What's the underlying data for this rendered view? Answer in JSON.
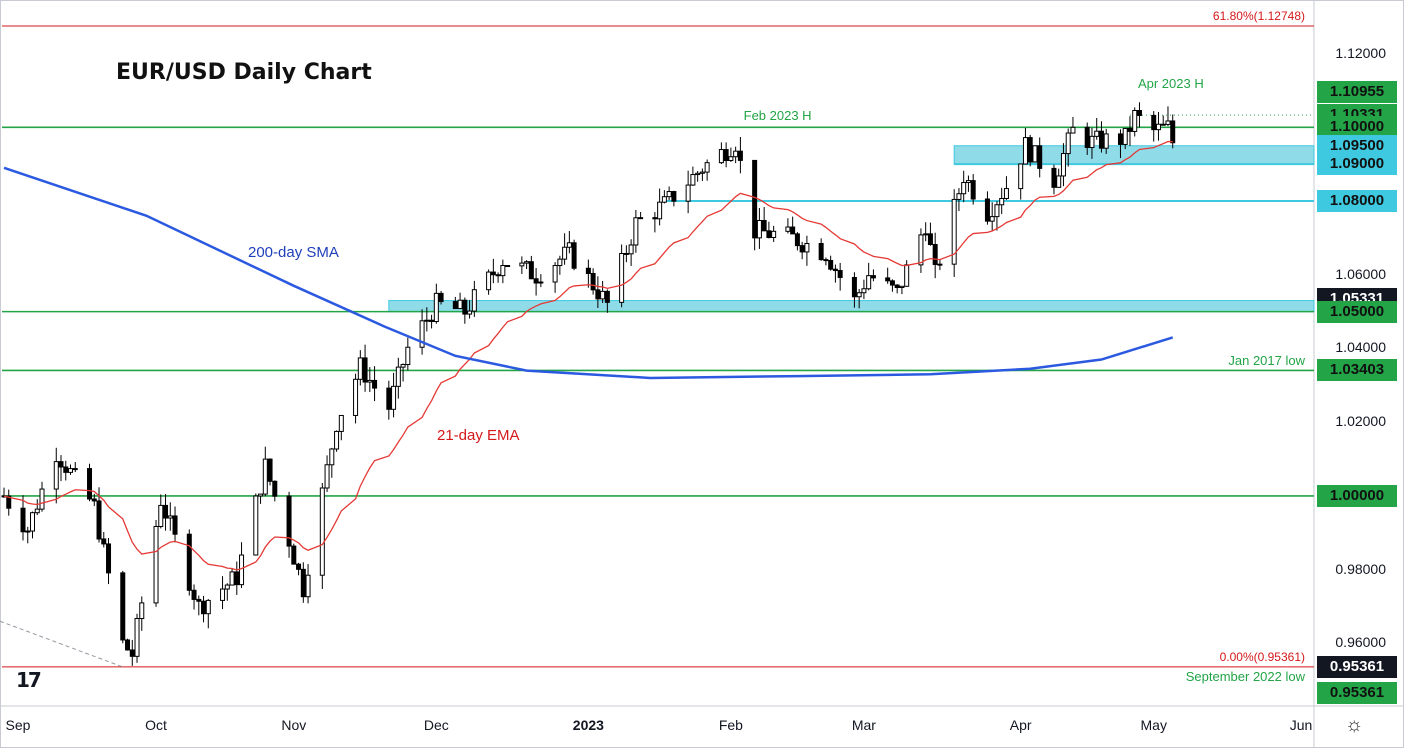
{
  "chart_data": {
    "type": "candlestick",
    "title": "EUR/USD Daily Chart",
    "ylim": [
      0.943,
      1.134
    ],
    "y_ticks": [
      "1.12000",
      "1.10000",
      "1.08000",
      "1.06000",
      "1.04000",
      "1.02000",
      "1.00000",
      "0.98000",
      "0.96000"
    ],
    "x_ticks": [
      {
        "label": "Sep",
        "date": "2022-09-01"
      },
      {
        "label": "Oct",
        "date": "2022-10-03"
      },
      {
        "label": "Nov",
        "date": "2022-11-01"
      },
      {
        "label": "Dec",
        "date": "2022-12-01"
      },
      {
        "label": "2023",
        "date": "2023-01-02",
        "bold": true
      },
      {
        "label": "Feb",
        "date": "2023-02-01"
      },
      {
        "label": "Mar",
        "date": "2023-03-01"
      },
      {
        "label": "Apr",
        "date": "2023-04-03"
      },
      {
        "label": "May",
        "date": "2023-05-01"
      },
      {
        "label": "Jun",
        "date": "2023-06-01"
      }
    ],
    "swing_points": [
      {
        "date": "2022-09-01",
        "close": 1.0
      },
      {
        "date": "2022-09-06",
        "close": 0.991
      },
      {
        "date": "2022-09-12",
        "close": 1.012
      },
      {
        "date": "2022-09-20",
        "close": 0.997
      },
      {
        "date": "2022-09-26",
        "close": 0.96
      },
      {
        "date": "2022-09-28",
        "close": 0.957
      },
      {
        "date": "2022-10-04",
        "close": 0.999
      },
      {
        "date": "2022-10-12",
        "close": 0.97
      },
      {
        "date": "2022-10-20",
        "close": 0.978
      },
      {
        "date": "2022-10-26",
        "close": 1.008
      },
      {
        "date": "2022-10-31",
        "close": 0.988
      },
      {
        "date": "2022-11-03",
        "close": 0.975
      },
      {
        "date": "2022-11-10",
        "close": 1.02
      },
      {
        "date": "2022-11-15",
        "close": 1.035
      },
      {
        "date": "2022-11-21",
        "close": 1.024
      },
      {
        "date": "2022-11-25",
        "close": 1.04
      },
      {
        "date": "2022-12-01",
        "close": 1.052
      },
      {
        "date": "2022-12-07",
        "close": 1.05
      },
      {
        "date": "2022-12-15",
        "close": 1.064
      },
      {
        "date": "2022-12-22",
        "close": 1.06
      },
      {
        "date": "2022-12-29",
        "close": 1.066
      },
      {
        "date": "2023-01-06",
        "close": 1.052
      },
      {
        "date": "2023-01-12",
        "close": 1.074
      },
      {
        "date": "2023-01-18",
        "close": 1.079
      },
      {
        "date": "2023-01-26",
        "close": 1.089
      },
      {
        "date": "2023-02-02",
        "close": 1.096
      },
      {
        "date": "2023-02-06",
        "close": 1.072
      },
      {
        "date": "2023-02-14",
        "close": 1.07
      },
      {
        "date": "2023-02-21",
        "close": 1.066
      },
      {
        "date": "2023-02-27",
        "close": 1.053
      },
      {
        "date": "2023-03-02",
        "close": 1.06
      },
      {
        "date": "2023-03-08",
        "close": 1.055
      },
      {
        "date": "2023-03-14",
        "close": 1.074
      },
      {
        "date": "2023-03-16",
        "close": 1.06
      },
      {
        "date": "2023-03-22",
        "close": 1.087
      },
      {
        "date": "2023-03-27",
        "close": 1.077
      },
      {
        "date": "2023-03-31",
        "close": 1.084
      },
      {
        "date": "2023-04-04",
        "close": 1.095
      },
      {
        "date": "2023-04-10",
        "close": 1.086
      },
      {
        "date": "2023-04-14",
        "close": 1.099
      },
      {
        "date": "2023-04-18",
        "close": 1.096
      },
      {
        "date": "2023-04-25",
        "close": 1.097
      },
      {
        "date": "2023-04-27",
        "close": 1.103
      },
      {
        "date": "2023-05-01",
        "close": 1.099
      },
      {
        "date": "2023-05-04",
        "close": 1.1
      },
      {
        "date": "2023-05-05",
        "close": 1.096
      }
    ],
    "sma200": [
      {
        "date": "2022-09-01",
        "value": 1.089
      },
      {
        "date": "2022-10-01",
        "value": 1.076
      },
      {
        "date": "2022-11-01",
        "value": 1.057
      },
      {
        "date": "2022-11-20",
        "value": 1.046
      },
      {
        "date": "2022-12-05",
        "value": 1.038
      },
      {
        "date": "2022-12-20",
        "value": 1.034
      },
      {
        "date": "2023-01-15",
        "value": 1.032
      },
      {
        "date": "2023-02-15",
        "value": 1.0325
      },
      {
        "date": "2023-03-15",
        "value": 1.033
      },
      {
        "date": "2023-04-05",
        "value": 1.0345
      },
      {
        "date": "2023-04-20",
        "value": 1.037
      },
      {
        "date": "2023-05-05",
        "value": 1.043
      }
    ],
    "series_labels": {
      "sma": "200-day SMA",
      "ema": "21-day EMA"
    },
    "horizontal_levels": [
      {
        "value": 1.12748,
        "label": "61.80%(1.12748)",
        "color": "#d4191b"
      },
      {
        "value": 1.1,
        "color": "#22a447"
      },
      {
        "value": 1.05,
        "color": "#22a447"
      },
      {
        "value": 1.03403,
        "label": "Jan 2017 low",
        "color": "#22a447"
      },
      {
        "value": 1.0,
        "color": "#22a447"
      },
      {
        "value": 0.95361,
        "label": "0.00%(0.95361)",
        "color": "#d4191b"
      }
    ],
    "zones": [
      {
        "from": 1.05,
        "to": 1.053,
        "start_date": "2022-11-21"
      },
      {
        "from": 1.09,
        "to": 1.095,
        "start_date": "2023-03-20"
      }
    ],
    "cyan_lines": [
      {
        "value": 1.08,
        "start_date": "2023-01-18"
      },
      {
        "value": 1.09,
        "start_date": "2023-03-20"
      }
    ],
    "annotations": [
      {
        "text": "Feb 2023 H",
        "date": "2023-02-02",
        "value": 1.101
      },
      {
        "text": "Apr 2023 H",
        "date": "2023-04-26",
        "value": 1.1097
      },
      {
        "text": "September 2022 low",
        "date": "2023-05-05",
        "value": 0.9536
      }
    ],
    "price_tags": [
      {
        "text": "1.10955",
        "value": 1.10955,
        "bg": "#22a447"
      },
      {
        "text": "1.10331",
        "value": 1.10331,
        "bg": "#22a447"
      },
      {
        "text": "1.10000",
        "value": 1.1,
        "bg": "#22a447"
      },
      {
        "text": "1.09500",
        "value": 1.095,
        "bg": "#3ec9e0"
      },
      {
        "text": "1.09000",
        "value": 1.09,
        "bg": "#3ec9e0"
      },
      {
        "text": "1.08000",
        "value": 1.08,
        "bg": "#3ec9e0"
      },
      {
        "text": "1.05331",
        "value": 1.05331,
        "bg": "#131722"
      },
      {
        "text": "1.05000",
        "value": 1.05,
        "bg": "#22a447"
      },
      {
        "text": "1.03403",
        "value": 1.03403,
        "bg": "#22a447"
      },
      {
        "text": "1.00000",
        "value": 1.0,
        "bg": "#22a447"
      },
      {
        "text": "0.95361",
        "value": 0.95361,
        "bg": "#131722"
      },
      {
        "text": "0.95361",
        "value": 0.95361,
        "bg": "#22a447",
        "offset": 1
      }
    ],
    "colors": {
      "up_candle": "#ffffff",
      "down_candle": "#000000",
      "sma": "#2b59e0",
      "ema": "#e53935",
      "level_green": "#22a447",
      "zone_fill": "#8fdce8",
      "zone_stroke": "#3ec9e0",
      "fib_red": "#d4191b"
    }
  },
  "ui": {
    "title": "EUR/USD Daily Chart",
    "sma_label": "200-day SMA",
    "ema_label": "21-day EMA",
    "logo": "TV",
    "settings_icon": "gear-icon"
  }
}
